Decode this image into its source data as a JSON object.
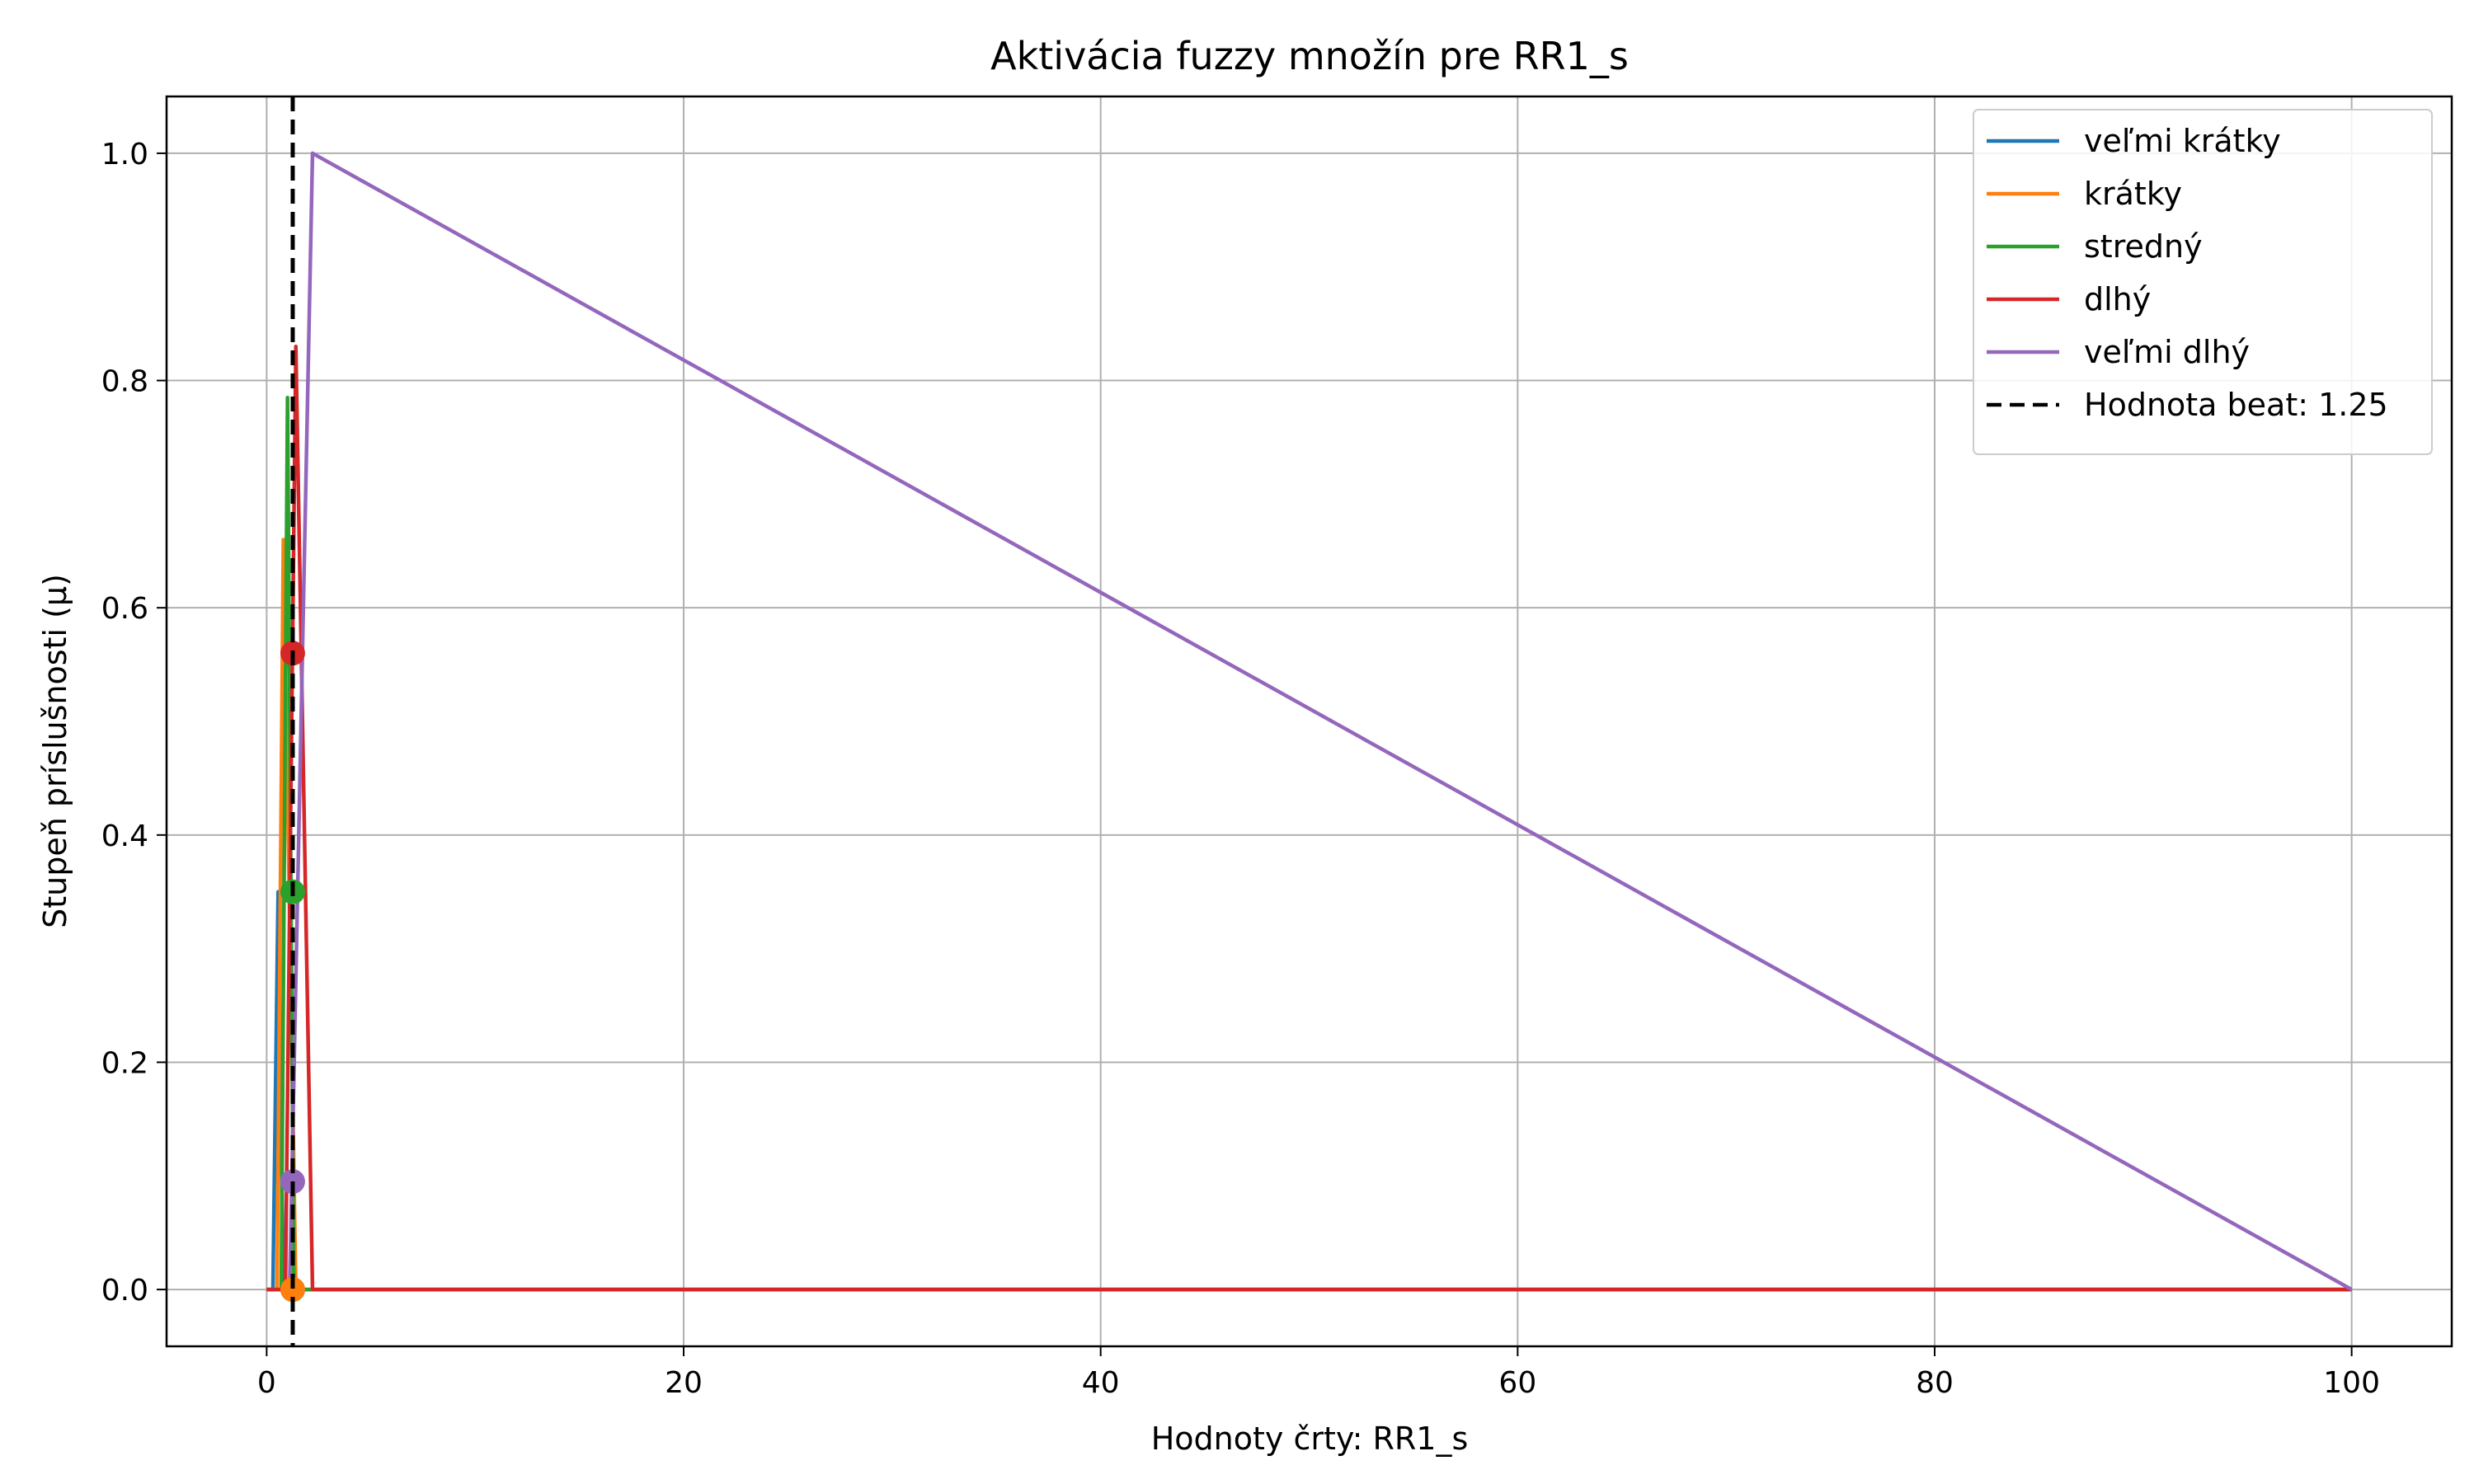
{
  "chart_data": {
    "type": "line",
    "title": "Aktivácia fuzzy množín pre RR1_s",
    "xlabel": "Hodnoty črty: RR1_s",
    "ylabel": "Stupeň príslušnosti (μ)",
    "xlim": [
      -4.8,
      104.8
    ],
    "ylim": [
      -0.05,
      1.05
    ],
    "xticks": [
      0,
      20,
      40,
      60,
      80,
      100
    ],
    "xtick_labels": [
      "0",
      "20",
      "40",
      "60",
      "80",
      "100"
    ],
    "yticks": [
      0.0,
      0.2,
      0.4,
      0.6,
      0.8,
      1.0
    ],
    "ytick_labels": [
      "0.0",
      "0.2",
      "0.4",
      "0.6",
      "0.8",
      "1.0"
    ],
    "grid": true,
    "legend_position": "top-right",
    "series": [
      {
        "name": "veľmi krátky",
        "color": "#1f77b4",
        "x": [
          0.0,
          0.3,
          0.55,
          0.8,
          100
        ],
        "y": [
          0.0,
          0.0,
          0.35,
          0.0,
          0.0
        ],
        "marker": {
          "x": 1.25,
          "y": 0.0
        }
      },
      {
        "name": "krátky",
        "color": "#ff7f0e",
        "x": [
          0.0,
          0.5,
          0.8,
          1.4,
          100
        ],
        "y": [
          0.0,
          0.0,
          0.66,
          0.0,
          0.0
        ],
        "marker": {
          "x": 1.25,
          "y": 0.0
        }
      },
      {
        "name": "stredný",
        "color": "#2ca02c",
        "x": [
          0.0,
          0.7,
          1.0,
          1.3,
          100
        ],
        "y": [
          0.0,
          0.0,
          0.785,
          0.0,
          0.0
        ],
        "marker": {
          "x": 1.25,
          "y": 0.35
        }
      },
      {
        "name": "dlhý",
        "color": "#d62728",
        "x": [
          0.0,
          0.9,
          1.4,
          2.2,
          100
        ],
        "y": [
          0.0,
          0.0,
          0.83,
          0.0,
          0.0
        ],
        "marker": {
          "x": 1.25,
          "y": 0.56
        }
      },
      {
        "name": "veľmi dlhý",
        "color": "#9467bd",
        "x": [
          1.1,
          2.2,
          100
        ],
        "y": [
          0.0,
          1.0,
          0.0
        ],
        "marker": {
          "x": 1.25,
          "y": 0.095
        }
      }
    ],
    "vline": {
      "name": "Hodnota beat: 1.25",
      "x": 1.25,
      "color": "#000000",
      "style": "dashed"
    }
  }
}
